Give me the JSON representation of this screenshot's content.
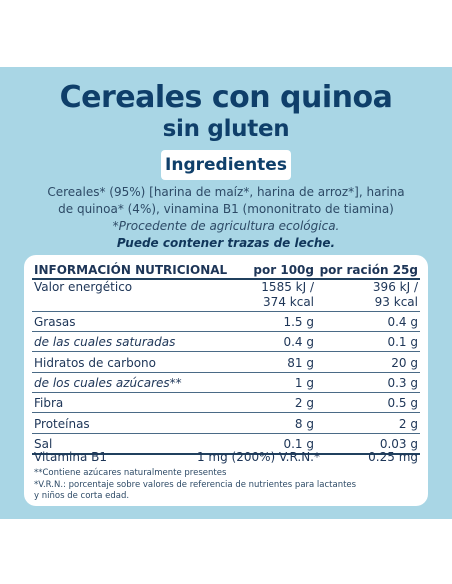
{
  "title": {
    "line1": "Cereales con quinoa",
    "line2": "sin gluten"
  },
  "ingredients": {
    "heading": "Ingredientes",
    "line1": "Cereales* (95%) [harina de maíz*, harina de arroz*], harina",
    "line2": "de quinoa* (4%), vinamina B1 (mononitrato de tiamina)",
    "eco": "*Procedente de agricultura ecológica.",
    "milk": "Puede contener trazas de leche."
  },
  "nutrition": {
    "header": {
      "label": "INFORMACIÓN NUTRICIONAL",
      "per100": "por 100g",
      "perServing": "por ración 25g"
    },
    "energy": {
      "label": "Valor energético",
      "per100_kj": "1585 kJ /",
      "per100_kcal": "374 kcal",
      "serving_kj": "396 kJ /",
      "serving_kcal": "93 kcal"
    },
    "rows": [
      {
        "label": "Grasas",
        "per100": "1.5 g",
        "serving": "0.4 g"
      },
      {
        "label": "de las cuales saturadas",
        "per100": "0.4 g",
        "serving": "0.1 g"
      },
      {
        "label": "Hidratos de carbono",
        "per100": "81 g",
        "serving": "20 g"
      },
      {
        "label": "de los cuales azúcares**",
        "per100": "1 g",
        "serving": "0.3 g"
      },
      {
        "label": "Fibra",
        "per100": "2 g",
        "serving": "0.5 g"
      },
      {
        "label": "Proteínas",
        "per100": "8 g",
        "serving": "2 g"
      },
      {
        "label": "Sal",
        "per100": "0.1 g",
        "serving": "0.03 g"
      }
    ],
    "vitamin": {
      "label": "Vitamina B1",
      "per100": "1 mg (200%) V.R.N.*",
      "serving": "0.25 mg"
    },
    "footnote1": "**Contiene azúcares naturalmente presentes",
    "footnote2": "*V.R.N.: porcentaje sobre valores de referencia de nutrientes para lactantes",
    "footnote3": "y niños de corta edad."
  },
  "colors": {
    "background": "#a9d6e5",
    "title": "#0f3f6a",
    "panel": "#ffffff"
  }
}
